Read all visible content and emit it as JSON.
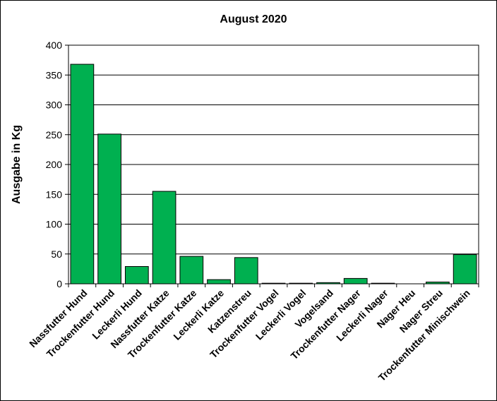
{
  "chart_data": {
    "type": "bar",
    "title": "August 2020",
    "xlabel": "",
    "ylabel": "Ausgabe in Kg",
    "ylim": [
      0,
      400
    ],
    "yticks": [
      "0",
      "50",
      "100",
      "150",
      "200",
      "250",
      "300",
      "350",
      "400"
    ],
    "grid": true,
    "bar_color": "#00b050",
    "categories": [
      "Nassfutter Hund",
      "Trockenfutter Hund",
      "Leckerli Hund",
      "Nassfutter Katze",
      "Trockenfutter Katze",
      "Leckerli Katze",
      "Katzenstreu",
      "Trockenfutter Vogel",
      "Leckerli Vogel",
      "Vogelsand",
      "Trockenfutter Nager",
      "Leckerli Nager",
      "Nager Heu",
      "Nager Streu",
      "Trockenfutter Minischwein"
    ],
    "values": [
      368,
      251,
      29,
      155,
      46,
      7,
      44,
      1,
      1,
      2,
      9,
      1,
      0,
      3,
      49
    ]
  }
}
